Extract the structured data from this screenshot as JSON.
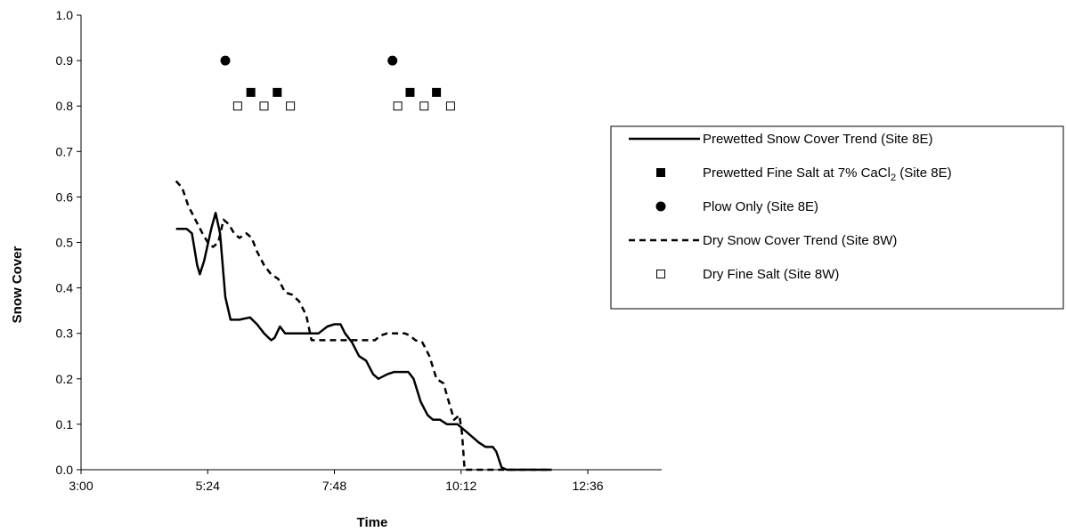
{
  "chart_data": {
    "type": "line",
    "xlabel": "Time",
    "ylabel": "Snow Cover",
    "xlim": [
      "3:00",
      "14:00"
    ],
    "ylim": [
      0,
      1.0
    ],
    "x_ticks": [
      "3:00",
      "5:24",
      "7:48",
      "10:12",
      "12:36"
    ],
    "y_ticks": [
      "0.0",
      "0.1",
      "0.2",
      "0.3",
      "0.4",
      "0.5",
      "0.6",
      "0.7",
      "0.8",
      "0.9",
      "1.0"
    ],
    "grid": false,
    "legend_position": "right",
    "colors": {
      "series": "#000000",
      "background": "#ffffff"
    },
    "series": [
      {
        "name": "Prewetted Snow Cover Trend (Site 8E)",
        "style": "solid-line",
        "points": [
          [
            "4:48",
            0.53
          ],
          [
            "5:00",
            0.53
          ],
          [
            "5:06",
            0.52
          ],
          [
            "5:12",
            0.45
          ],
          [
            "5:15",
            0.43
          ],
          [
            "5:20",
            0.46
          ],
          [
            "5:28",
            0.53
          ],
          [
            "5:33",
            0.565
          ],
          [
            "5:38",
            0.52
          ],
          [
            "5:44",
            0.38
          ],
          [
            "5:50",
            0.33
          ],
          [
            "6:00",
            0.33
          ],
          [
            "6:12",
            0.335
          ],
          [
            "6:20",
            0.32
          ],
          [
            "6:28",
            0.3
          ],
          [
            "6:36",
            0.285
          ],
          [
            "6:40",
            0.29
          ],
          [
            "6:46",
            0.315
          ],
          [
            "6:52",
            0.3
          ],
          [
            "7:00",
            0.3
          ],
          [
            "7:10",
            0.3
          ],
          [
            "7:20",
            0.3
          ],
          [
            "7:30",
            0.3
          ],
          [
            "7:40",
            0.315
          ],
          [
            "7:48",
            0.32
          ],
          [
            "7:55",
            0.32
          ],
          [
            "8:00",
            0.3
          ],
          [
            "8:08",
            0.28
          ],
          [
            "8:16",
            0.25
          ],
          [
            "8:24",
            0.24
          ],
          [
            "8:32",
            0.21
          ],
          [
            "8:38",
            0.2
          ],
          [
            "8:48",
            0.21
          ],
          [
            "8:56",
            0.215
          ],
          [
            "9:04",
            0.215
          ],
          [
            "9:12",
            0.215
          ],
          [
            "9:18",
            0.2
          ],
          [
            "9:26",
            0.15
          ],
          [
            "9:34",
            0.12
          ],
          [
            "9:40",
            0.11
          ],
          [
            "9:48",
            0.11
          ],
          [
            "9:56",
            0.1
          ],
          [
            "10:08",
            0.1
          ],
          [
            "10:20",
            0.08
          ],
          [
            "10:32",
            0.06
          ],
          [
            "10:40",
            0.05
          ],
          [
            "10:48",
            0.05
          ],
          [
            "10:52",
            0.04
          ],
          [
            "10:58",
            0.005
          ],
          [
            "11:04",
            0.0
          ],
          [
            "11:30",
            0.0
          ],
          [
            "11:55",
            0.0
          ]
        ]
      },
      {
        "name": "Prewetted Fine Salt at 7% CaCl",
        "name_subscript": "2",
        "name_suffix": " (Site 8E)",
        "style": "filled-square",
        "points": [
          [
            "6:13",
            0.83
          ],
          [
            "6:43",
            0.83
          ],
          [
            "9:14",
            0.83
          ],
          [
            "9:44",
            0.83
          ]
        ]
      },
      {
        "name": "Plow Only (Site 8E)",
        "style": "filled-circle",
        "points": [
          [
            "5:44",
            0.9
          ],
          [
            "8:54",
            0.9
          ]
        ]
      },
      {
        "name": "Dry Snow Cover Trend (Site 8W)",
        "style": "dashed-line",
        "points": [
          [
            "4:48",
            0.635
          ],
          [
            "4:55",
            0.62
          ],
          [
            "5:02",
            0.58
          ],
          [
            "5:10",
            0.55
          ],
          [
            "5:18",
            0.52
          ],
          [
            "5:24",
            0.5
          ],
          [
            "5:30",
            0.49
          ],
          [
            "5:36",
            0.5
          ],
          [
            "5:42",
            0.55
          ],
          [
            "5:48",
            0.54
          ],
          [
            "5:54",
            0.52
          ],
          [
            "6:00",
            0.51
          ],
          [
            "6:08",
            0.52
          ],
          [
            "6:14",
            0.51
          ],
          [
            "6:20",
            0.48
          ],
          [
            "6:28",
            0.45
          ],
          [
            "6:36",
            0.43
          ],
          [
            "6:44",
            0.42
          ],
          [
            "6:52",
            0.39
          ],
          [
            "7:00",
            0.385
          ],
          [
            "7:08",
            0.37
          ],
          [
            "7:16",
            0.34
          ],
          [
            "7:22",
            0.285
          ],
          [
            "7:30",
            0.285
          ],
          [
            "7:48",
            0.285
          ],
          [
            "8:06",
            0.285
          ],
          [
            "8:24",
            0.285
          ],
          [
            "8:34",
            0.285
          ],
          [
            "8:40",
            0.295
          ],
          [
            "8:48",
            0.3
          ],
          [
            "9:00",
            0.3
          ],
          [
            "9:08",
            0.3
          ],
          [
            "9:14",
            0.295
          ],
          [
            "9:20",
            0.285
          ],
          [
            "9:28",
            0.28
          ],
          [
            "9:36",
            0.25
          ],
          [
            "9:44",
            0.2
          ],
          [
            "9:52",
            0.19
          ],
          [
            "9:58",
            0.15
          ],
          [
            "10:04",
            0.11
          ],
          [
            "10:10",
            0.12
          ],
          [
            "10:13",
            0.08
          ],
          [
            "10:16",
            0.0
          ],
          [
            "10:30",
            0.0
          ],
          [
            "10:50",
            0.0
          ],
          [
            "11:10",
            0.0
          ],
          [
            "11:40",
            0.0
          ],
          [
            "11:55",
            0.0
          ]
        ]
      },
      {
        "name": "Dry Fine Salt (Site 8W)",
        "style": "open-square",
        "points": [
          [
            "5:58",
            0.8
          ],
          [
            "6:28",
            0.8
          ],
          [
            "6:58",
            0.8
          ],
          [
            "9:00",
            0.8
          ],
          [
            "9:30",
            0.8
          ],
          [
            "10:00",
            0.8
          ]
        ]
      }
    ]
  }
}
